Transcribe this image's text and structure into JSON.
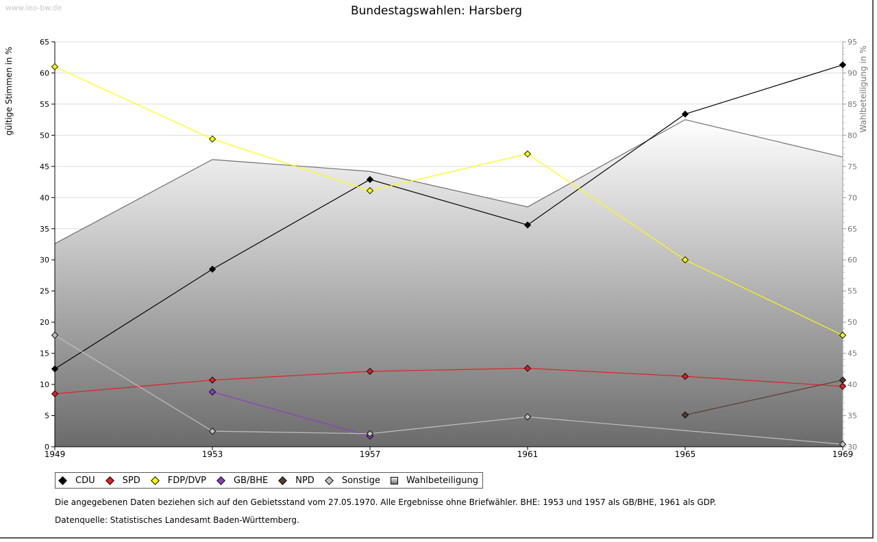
{
  "watermark": "www.leo-bw.de",
  "chart_data": {
    "type": "line",
    "title": "Bundestagswahlen: Harsberg",
    "ylabel": "gültige Stimmen in %",
    "y2label": "Wahlbeteiligung in %",
    "xlabel": "",
    "categories": [
      "1949",
      "1953",
      "1957",
      "1961",
      "1965",
      "1969"
    ],
    "ylim": [
      0,
      65
    ],
    "y2lim": [
      30,
      95
    ],
    "yticks": [
      0,
      5,
      10,
      15,
      20,
      25,
      30,
      35,
      40,
      45,
      50,
      55,
      60,
      65
    ],
    "y2ticks": [
      30,
      35,
      40,
      45,
      50,
      55,
      60,
      65,
      70,
      75,
      80,
      85,
      90,
      95
    ],
    "grid": true,
    "series": [
      {
        "name": "CDU",
        "color": "#000000",
        "values": [
          12.5,
          28.5,
          42.9,
          35.6,
          53.4,
          61.3
        ]
      },
      {
        "name": "SPD",
        "color": "#e31e24",
        "values": [
          8.5,
          10.7,
          12.1,
          12.6,
          11.3,
          9.7
        ]
      },
      {
        "name": "FDP/DVP",
        "color": "#ffff00",
        "values": [
          61.0,
          49.4,
          41.1,
          47.0,
          30.0,
          17.9
        ]
      },
      {
        "name": "GB/BHE",
        "color": "#8c3fbf",
        "values": [
          null,
          8.8,
          1.7,
          null,
          null,
          null
        ]
      },
      {
        "name": "NPD",
        "color": "#5a3c2e",
        "values": [
          null,
          null,
          null,
          null,
          5.1,
          10.7
        ]
      },
      {
        "name": "Sonstige",
        "color": "#c0c0c0",
        "values": [
          17.9,
          2.5,
          2.1,
          4.8,
          null,
          0.4
        ]
      }
    ],
    "turnout": {
      "name": "Wahlbeteiligung",
      "values": [
        62.6,
        76.1,
        74.2,
        68.5,
        82.5,
        76.5
      ]
    }
  },
  "notes": [
    "Die angegebenen Daten beziehen sich auf den Gebietsstand vom 27.05.1970. Alle Ergebnisse ohne Briefwähler. BHE: 1953 und 1957 als GB/BHE, 1961 als GDP.",
    "Datenquelle: Statistisches Landesamt Baden-Württemberg."
  ]
}
